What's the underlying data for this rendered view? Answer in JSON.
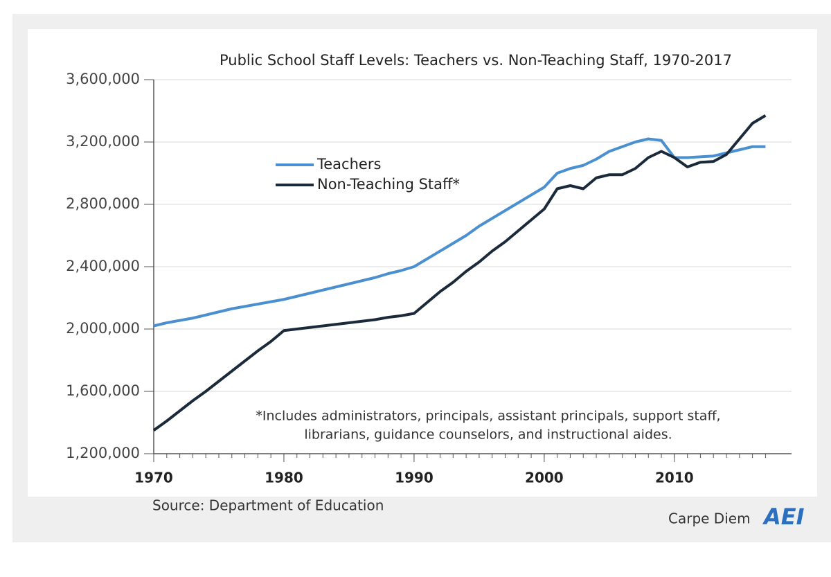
{
  "chart_data": {
    "type": "line",
    "title": "Public School Staff Levels: Teachers vs. Non-Teaching Staff, 1970-2017",
    "x": [
      1970,
      1971,
      1972,
      1973,
      1974,
      1975,
      1976,
      1977,
      1978,
      1979,
      1980,
      1981,
      1982,
      1983,
      1984,
      1985,
      1986,
      1987,
      1988,
      1989,
      1990,
      1991,
      1992,
      1993,
      1994,
      1995,
      1996,
      1997,
      1998,
      1999,
      2000,
      2001,
      2002,
      2003,
      2004,
      2005,
      2006,
      2007,
      2008,
      2009,
      2010,
      2011,
      2012,
      2013,
      2014,
      2015,
      2016,
      2017
    ],
    "series": [
      {
        "name": "Teachers",
        "color": "#4a90d0",
        "values": [
          2020000,
          2040000,
          2055000,
          2070000,
          2090000,
          2110000,
          2130000,
          2145000,
          2160000,
          2175000,
          2190000,
          2210000,
          2230000,
          2250000,
          2270000,
          2290000,
          2310000,
          2330000,
          2355000,
          2375000,
          2400000,
          2450000,
          2500000,
          2550000,
          2600000,
          2660000,
          2710000,
          2760000,
          2810000,
          2860000,
          2910000,
          3000000,
          3030000,
          3050000,
          3090000,
          3140000,
          3170000,
          3200000,
          3220000,
          3210000,
          3100000,
          3100000,
          3105000,
          3110000,
          3130000,
          3150000,
          3170000,
          3170000
        ]
      },
      {
        "name": "Non-Teaching Staff*",
        "color": "#1b2a3a",
        "values": [
          1350000,
          1410000,
          1475000,
          1540000,
          1600000,
          1665000,
          1730000,
          1795000,
          1860000,
          1920000,
          1990000,
          2000000,
          2010000,
          2020000,
          2030000,
          2040000,
          2050000,
          2060000,
          2075000,
          2085000,
          2100000,
          2170000,
          2240000,
          2300000,
          2370000,
          2430000,
          2500000,
          2560000,
          2630000,
          2700000,
          2770000,
          2900000,
          2920000,
          2900000,
          2970000,
          2990000,
          2990000,
          3030000,
          3100000,
          3140000,
          3100000,
          3040000,
          3070000,
          3075000,
          3120000,
          3220000,
          3320000,
          3370000
        ]
      }
    ],
    "xlim": [
      1970,
      2019
    ],
    "xticks": [
      1970,
      1980,
      1990,
      2000,
      2010
    ],
    "ylim": [
      1200000,
      3600000
    ],
    "yticks": [
      {
        "value": 1200000,
        "label": "1,200,000"
      },
      {
        "value": 1600000,
        "label": "1,600,000"
      },
      {
        "value": 2000000,
        "label": "2,000,000"
      },
      {
        "value": 2400000,
        "label": "2,400,000"
      },
      {
        "value": 2800000,
        "label": "2,800,000"
      },
      {
        "value": 3200000,
        "label": "3,200,000"
      },
      {
        "value": 3600000,
        "label": "3,600,000"
      }
    ],
    "grid": true,
    "legend": "upper left",
    "annotation": [
      "*Includes administrators, principals, assistant principals, support staff,",
      "librarians, guidance counselors, and instructional aides."
    ],
    "source": "Source: Department of Education",
    "brand": "Carpe Diem",
    "logo": "AEI"
  }
}
